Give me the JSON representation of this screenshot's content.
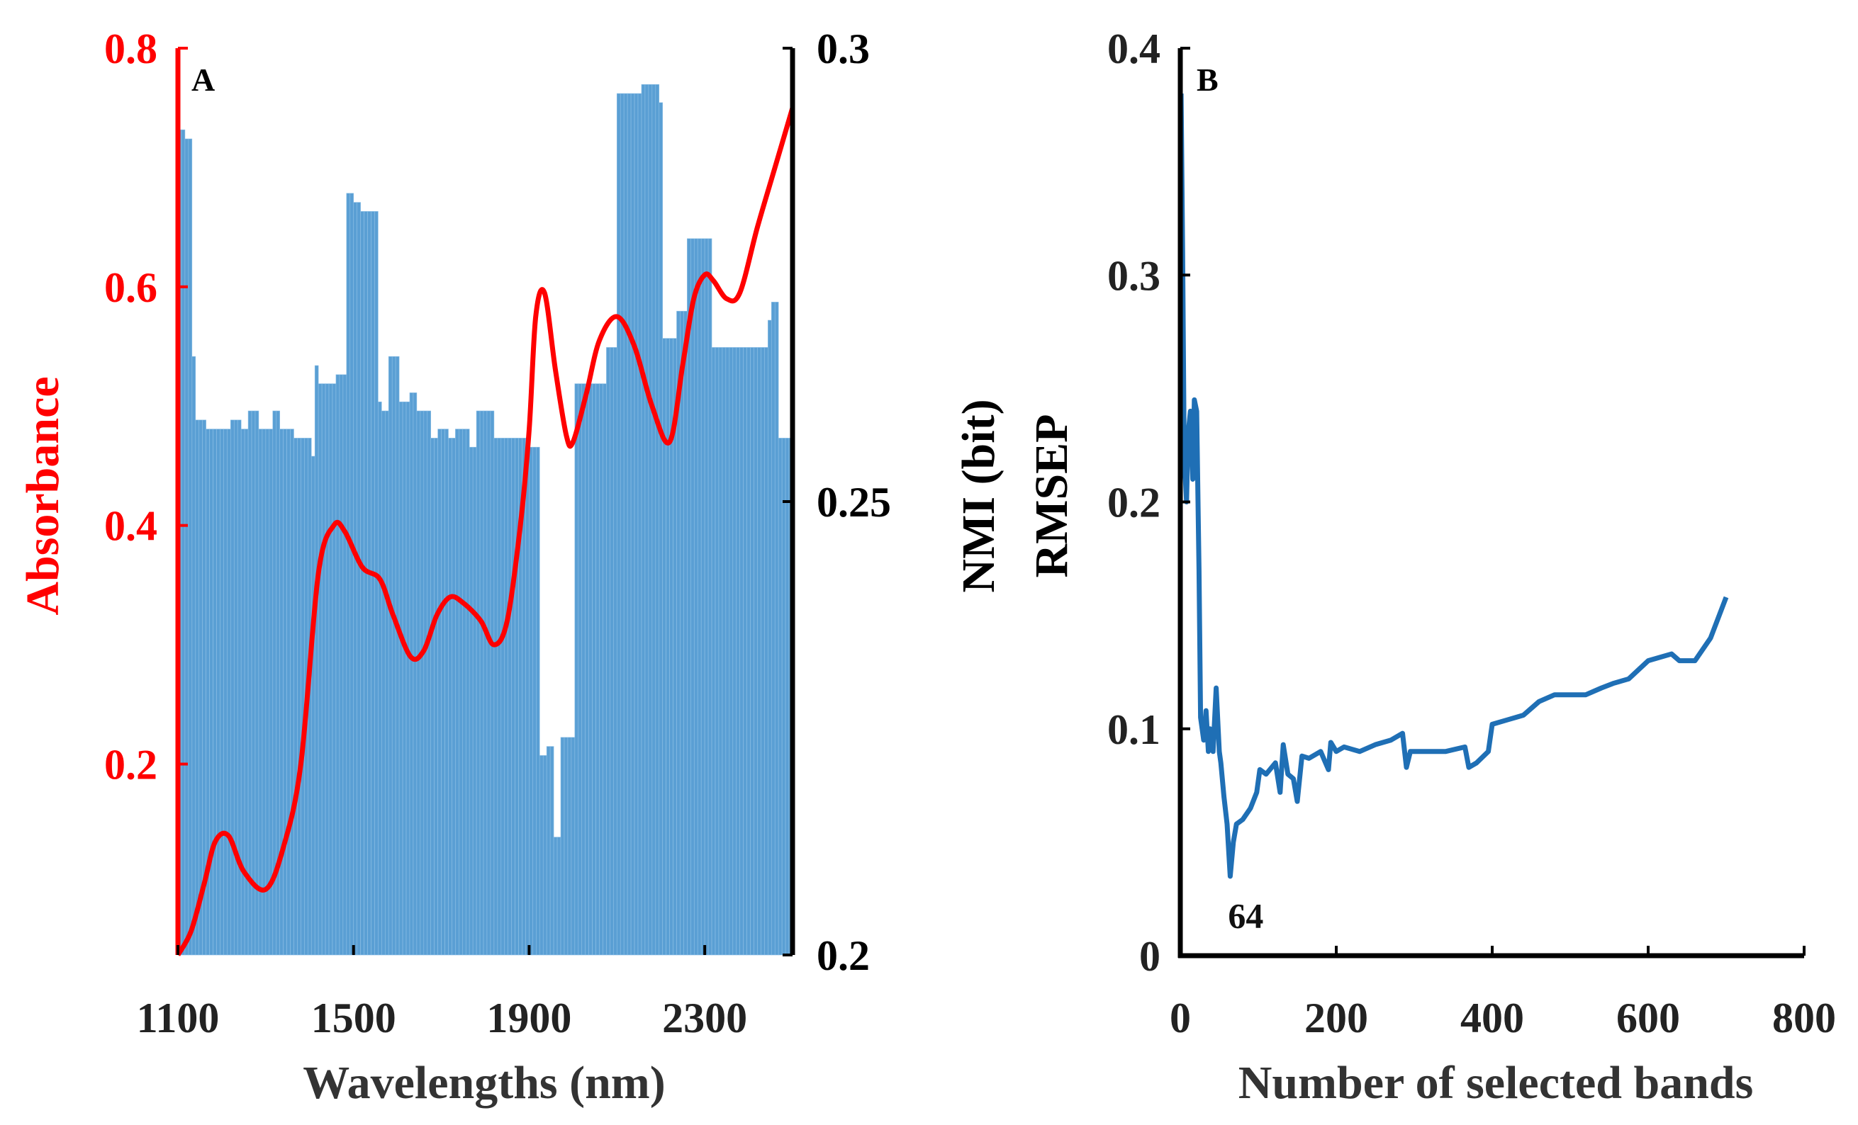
{
  "chart_data": [
    {
      "panel": "A",
      "type": "bar",
      "title": "",
      "xlabel": "Wavelengths (nm)",
      "ylabel_left": "Absorbance",
      "ylabel_right": "NMI (bit)",
      "xlim": [
        1100,
        2500
      ],
      "xticks": [
        "1100",
        "1500",
        "1900",
        "2300"
      ],
      "xtick_values": [
        1100,
        1500,
        1900,
        2300
      ],
      "ylim_left": [
        0.04,
        0.8
      ],
      "yticks_left": [
        "0.2",
        "0.4",
        "0.6",
        "0.8"
      ],
      "ytick_values_left": [
        0.2,
        0.4,
        0.6,
        0.8
      ],
      "ylim_right": [
        0.2,
        0.3
      ],
      "yticks_right": [
        "0.2",
        "0.25",
        "0.3"
      ],
      "ytick_values_right": [
        0.2,
        0.25,
        0.3
      ],
      "bar_color": "#5a9fd4",
      "left_axis_color": "#ff0000",
      "right_axis_color": "#000000",
      "grid": false,
      "series": [
        {
          "name": "NMI (bit)",
          "axis": "right",
          "kind": "bar",
          "bin_width": 8,
          "steps": [
            [
              1100,
              0.291
            ],
            [
              1115,
              0.29
            ],
            [
              1125,
              0.266
            ],
            [
              1135,
              0.241
            ],
            [
              1140,
              0.259
            ],
            [
              1160,
              0.258
            ],
            [
              1220,
              0.259
            ],
            [
              1240,
              0.258
            ],
            [
              1260,
              0.26
            ],
            [
              1280,
              0.258
            ],
            [
              1310,
              0.26
            ],
            [
              1330,
              0.258
            ],
            [
              1360,
              0.257
            ],
            [
              1400,
              0.255
            ],
            [
              1410,
              0.265
            ],
            [
              1420,
              0.263
            ],
            [
              1455,
              0.264
            ],
            [
              1480,
              0.284
            ],
            [
              1500,
              0.283
            ],
            [
              1515,
              0.282
            ],
            [
              1550,
              0.287
            ],
            [
              1555,
              0.261
            ],
            [
              1560,
              0.26
            ],
            [
              1580,
              0.266
            ],
            [
              1600,
              0.261
            ],
            [
              1625,
              0.262
            ],
            [
              1640,
              0.26
            ],
            [
              1670,
              0.257
            ],
            [
              1690,
              0.258
            ],
            [
              1710,
              0.257
            ],
            [
              1730,
              0.258
            ],
            [
              1760,
              0.256
            ],
            [
              1780,
              0.26
            ],
            [
              1815,
              0.257
            ],
            [
              1900,
              0.256
            ],
            [
              1920,
              0.222
            ],
            [
              1935,
              0.223
            ],
            [
              1950,
              0.213
            ],
            [
              1970,
              0.224
            ],
            [
              2000,
              0.263
            ],
            [
              2070,
              0.267
            ],
            [
              2100,
              0.295
            ],
            [
              2150,
              0.296
            ],
            [
              2190,
              0.294
            ],
            [
              2200,
              0.268
            ],
            [
              2230,
              0.271
            ],
            [
              2260,
              0.279
            ],
            [
              2310,
              0.267
            ],
            [
              2440,
              0.27
            ],
            [
              2450,
              0.272
            ],
            [
              2465,
              0.257
            ],
            [
              2480,
              0.257
            ],
            [
              2500,
              0.257
            ]
          ]
        },
        {
          "name": "Absorbance",
          "axis": "left",
          "kind": "line",
          "color": "#ff0000",
          "x": [
            1100,
            1130,
            1160,
            1185,
            1215,
            1250,
            1300,
            1340,
            1380,
            1420,
            1455,
            1480,
            1520,
            1560,
            1590,
            1630,
            1660,
            1690,
            1720,
            1750,
            1790,
            1820,
            1850,
            1880,
            1900,
            1915,
            1935,
            1960,
            1985,
            2000,
            2030,
            2060,
            2100,
            2140,
            2180,
            2220,
            2250,
            2275,
            2300,
            2320,
            2350,
            2380,
            2420,
            2460,
            2500
          ],
          "y": [
            0.04,
            0.06,
            0.1,
            0.135,
            0.14,
            0.11,
            0.095,
            0.13,
            0.2,
            0.36,
            0.4,
            0.395,
            0.365,
            0.355,
            0.325,
            0.29,
            0.295,
            0.325,
            0.34,
            0.335,
            0.32,
            0.3,
            0.32,
            0.4,
            0.48,
            0.575,
            0.595,
            0.53,
            0.475,
            0.47,
            0.51,
            0.555,
            0.575,
            0.55,
            0.5,
            0.47,
            0.535,
            0.59,
            0.61,
            0.605,
            0.59,
            0.595,
            0.65,
            0.7,
            0.75
          ]
        }
      ]
    },
    {
      "panel": "B",
      "type": "line",
      "title": "",
      "xlabel": "Number of selected bands",
      "ylabel": "RMSEP",
      "xlim": [
        0,
        800
      ],
      "xticks": [
        "0",
        "200",
        "400",
        "600",
        "800"
      ],
      "xtick_values": [
        0,
        200,
        400,
        600,
        800
      ],
      "ylim": [
        0,
        0.4
      ],
      "yticks": [
        "0",
        "0.1",
        "0.2",
        "0.3",
        "0.4"
      ],
      "ytick_values": [
        0,
        0.1,
        0.2,
        0.3,
        0.4
      ],
      "grid": false,
      "annotations": [
        {
          "text": "64",
          "x": 84,
          "y": 0.018
        }
      ],
      "series": [
        {
          "name": "RMSEP",
          "color": "#1f6fb5",
          "x": [
            1,
            3,
            5,
            8,
            10,
            13,
            16,
            18,
            21,
            24,
            26,
            30,
            33,
            36,
            38,
            42,
            46,
            50,
            52,
            56,
            60,
            64,
            68,
            72,
            80,
            90,
            98,
            102,
            110,
            122,
            128,
            132,
            138,
            145,
            150,
            156,
            165,
            180,
            190,
            193,
            200,
            210,
            230,
            250,
            270,
            285,
            290,
            295,
            310,
            340,
            365,
            370,
            380,
            395,
            400,
            420,
            440,
            460,
            480,
            520,
            540,
            555,
            575,
            600,
            630,
            640,
            660,
            680,
            700
          ],
          "y": [
            0.38,
            0.31,
            0.22,
            0.2,
            0.23,
            0.24,
            0.21,
            0.245,
            0.24,
            0.17,
            0.105,
            0.095,
            0.108,
            0.09,
            0.1,
            0.09,
            0.118,
            0.09,
            0.085,
            0.07,
            0.058,
            0.035,
            0.05,
            0.058,
            0.06,
            0.065,
            0.072,
            0.082,
            0.08,
            0.085,
            0.072,
            0.093,
            0.08,
            0.078,
            0.068,
            0.088,
            0.087,
            0.09,
            0.082,
            0.094,
            0.09,
            0.092,
            0.09,
            0.093,
            0.095,
            0.098,
            0.083,
            0.09,
            0.09,
            0.09,
            0.092,
            0.083,
            0.085,
            0.09,
            0.102,
            0.104,
            0.106,
            0.112,
            0.115,
            0.115,
            0.118,
            0.12,
            0.122,
            0.13,
            0.133,
            0.13,
            0.13,
            0.14,
            0.158
          ]
        }
      ]
    }
  ]
}
